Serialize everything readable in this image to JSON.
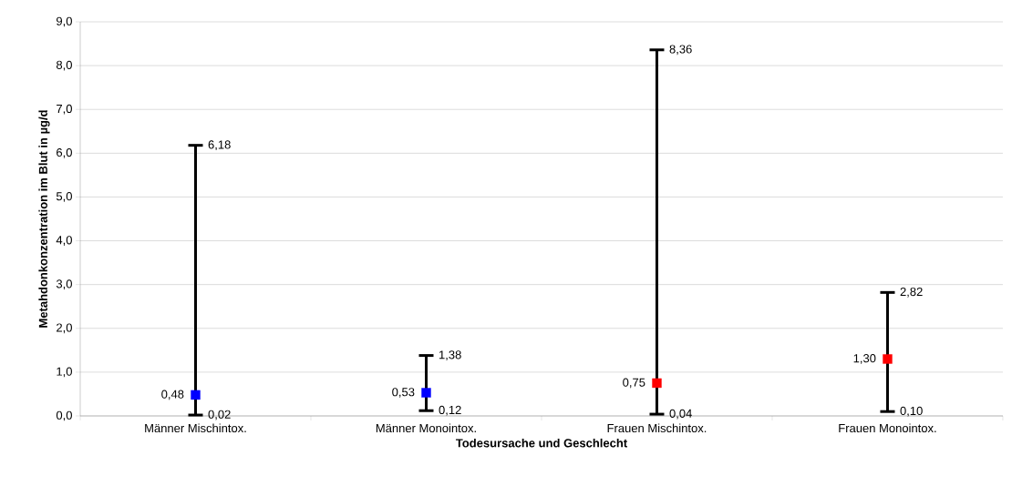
{
  "chart_data": {
    "type": "scatter",
    "xlabel": "Todesursache und Geschlecht",
    "ylabel": "Metahdonkonzentration im Blut in µg/d",
    "categories": [
      "Männer Mischintox.",
      "Männer Monointox.",
      "Frauen Mischintox.",
      "Frauen Monointox."
    ],
    "values": [
      0.48,
      0.53,
      0.75,
      1.3
    ],
    "colors": [
      "#0000ff",
      "#0000ff",
      "#ff0000",
      "#ff0000"
    ],
    "value_labels": [
      "0,48",
      "0,53",
      "0,75",
      "1,30"
    ],
    "errors": [
      [
        0.02,
        6.18
      ],
      [
        0.12,
        1.38
      ],
      [
        0.04,
        8.36
      ],
      [
        0.1,
        2.82
      ]
    ],
    "annotations": [
      {
        "text": "6,18",
        "x": "Männer Mischintox.",
        "y": 6.18
      },
      {
        "text": "0,02",
        "x": "Männer Mischintox.",
        "y": 0.02
      },
      {
        "text": "1,38",
        "x": "Männer Monointox.",
        "y": 1.38
      },
      {
        "text": "0,12",
        "x": "Männer Monointox.",
        "y": 0.12
      },
      {
        "text": "8,36",
        "x": "Frauen Mischintox.",
        "y": 8.36
      },
      {
        "text": "0,04",
        "x": "Frauen Mischintox.",
        "y": 0.04
      },
      {
        "text": "2,82",
        "x": "Frauen Monointox.",
        "y": 2.82
      },
      {
        "text": "0,10",
        "x": "Frauen Monointox.",
        "y": 0.1
      }
    ],
    "ylim": [
      0,
      9
    ],
    "yticks": [
      {
        "value": 0,
        "label": "0,0"
      },
      {
        "value": 1,
        "label": "1,0"
      },
      {
        "value": 2,
        "label": "2,0"
      },
      {
        "value": 3,
        "label": "3,0"
      },
      {
        "value": 4,
        "label": "4,0"
      },
      {
        "value": 5,
        "label": "5,0"
      },
      {
        "value": 6,
        "label": "6,0"
      },
      {
        "value": 7,
        "label": "7,0"
      },
      {
        "value": 8,
        "label": "8,0"
      },
      {
        "value": 9,
        "label": "9,0"
      }
    ],
    "grid": "y",
    "marker": "square"
  }
}
